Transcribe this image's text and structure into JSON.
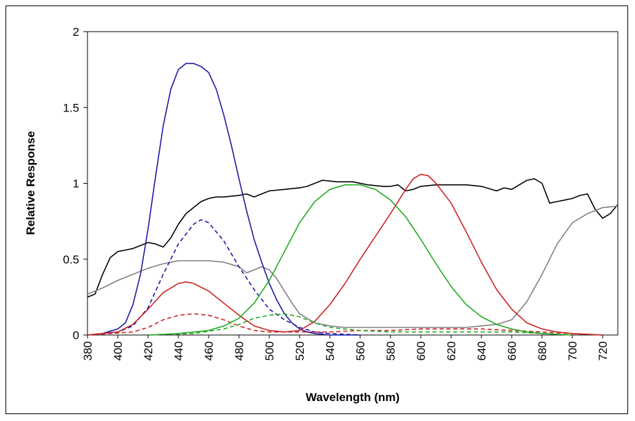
{
  "chart_data": {
    "type": "line",
    "title": "",
    "xlabel": "Wavelength (nm)",
    "ylabel": "Relative Response",
    "xlim": [
      380,
      730
    ],
    "ylim": [
      0,
      2
    ],
    "x_ticks": [
      380,
      400,
      420,
      440,
      460,
      480,
      500,
      520,
      540,
      560,
      580,
      600,
      620,
      640,
      660,
      680,
      700,
      720
    ],
    "y_ticks": [
      0,
      0.5,
      1,
      1.5,
      2
    ],
    "y_tick_labels": [
      "0",
      "0.5",
      "1",
      "1.5",
      "2"
    ],
    "grid": false,
    "legend": "none",
    "series": [
      {
        "color": "#000000",
        "dash": false,
        "points": [
          [
            380,
            0.25
          ],
          [
            385,
            0.27
          ],
          [
            390,
            0.4
          ],
          [
            395,
            0.51
          ],
          [
            400,
            0.55
          ],
          [
            405,
            0.56
          ],
          [
            410,
            0.57
          ],
          [
            415,
            0.59
          ],
          [
            420,
            0.61
          ],
          [
            425,
            0.6
          ],
          [
            430,
            0.58
          ],
          [
            435,
            0.64
          ],
          [
            440,
            0.73
          ],
          [
            445,
            0.8
          ],
          [
            450,
            0.84
          ],
          [
            455,
            0.88
          ],
          [
            460,
            0.9
          ],
          [
            465,
            0.91
          ],
          [
            470,
            0.91
          ],
          [
            480,
            0.92
          ],
          [
            485,
            0.93
          ],
          [
            490,
            0.91
          ],
          [
            495,
            0.93
          ],
          [
            500,
            0.95
          ],
          [
            510,
            0.96
          ],
          [
            520,
            0.97
          ],
          [
            525,
            0.98
          ],
          [
            530,
            1.0
          ],
          [
            535,
            1.02
          ],
          [
            545,
            1.01
          ],
          [
            555,
            1.01
          ],
          [
            565,
            0.99
          ],
          [
            575,
            0.98
          ],
          [
            580,
            0.98
          ],
          [
            585,
            0.99
          ],
          [
            590,
            0.95
          ],
          [
            595,
            0.96
          ],
          [
            600,
            0.98
          ],
          [
            610,
            0.99
          ],
          [
            620,
            0.99
          ],
          [
            630,
            0.99
          ],
          [
            640,
            0.98
          ],
          [
            650,
            0.95
          ],
          [
            655,
            0.97
          ],
          [
            660,
            0.96
          ],
          [
            665,
            0.99
          ],
          [
            670,
            1.02
          ],
          [
            675,
            1.03
          ],
          [
            680,
            1.0
          ],
          [
            685,
            0.87
          ],
          [
            690,
            0.88
          ],
          [
            695,
            0.89
          ],
          [
            700,
            0.9
          ],
          [
            705,
            0.92
          ],
          [
            710,
            0.93
          ],
          [
            715,
            0.83
          ],
          [
            720,
            0.77
          ],
          [
            725,
            0.8
          ],
          [
            730,
            0.86
          ]
        ]
      },
      {
        "color": "#808080",
        "dash": false,
        "points": [
          [
            380,
            0.27
          ],
          [
            390,
            0.31
          ],
          [
            400,
            0.36
          ],
          [
            410,
            0.4
          ],
          [
            420,
            0.44
          ],
          [
            430,
            0.47
          ],
          [
            440,
            0.49
          ],
          [
            450,
            0.49
          ],
          [
            460,
            0.49
          ],
          [
            470,
            0.48
          ],
          [
            480,
            0.45
          ],
          [
            485,
            0.41
          ],
          [
            490,
            0.43
          ],
          [
            495,
            0.45
          ],
          [
            500,
            0.43
          ],
          [
            505,
            0.37
          ],
          [
            510,
            0.29
          ],
          [
            515,
            0.21
          ],
          [
            520,
            0.14
          ],
          [
            530,
            0.08
          ],
          [
            540,
            0.06
          ],
          [
            550,
            0.05
          ],
          [
            560,
            0.05
          ],
          [
            580,
            0.05
          ],
          [
            600,
            0.05
          ],
          [
            620,
            0.05
          ],
          [
            630,
            0.05
          ],
          [
            640,
            0.06
          ],
          [
            650,
            0.07
          ],
          [
            660,
            0.1
          ],
          [
            670,
            0.22
          ],
          [
            680,
            0.4
          ],
          [
            690,
            0.6
          ],
          [
            700,
            0.74
          ],
          [
            710,
            0.8
          ],
          [
            720,
            0.84
          ],
          [
            730,
            0.85
          ]
        ]
      },
      {
        "color": "#1a1aa6",
        "dash": false,
        "points": [
          [
            380,
            0.0
          ],
          [
            390,
            0.01
          ],
          [
            400,
            0.04
          ],
          [
            405,
            0.08
          ],
          [
            410,
            0.2
          ],
          [
            415,
            0.4
          ],
          [
            420,
            0.7
          ],
          [
            425,
            1.05
          ],
          [
            430,
            1.38
          ],
          [
            435,
            1.62
          ],
          [
            440,
            1.75
          ],
          [
            445,
            1.79
          ],
          [
            450,
            1.79
          ],
          [
            455,
            1.77
          ],
          [
            460,
            1.73
          ],
          [
            465,
            1.62
          ],
          [
            470,
            1.45
          ],
          [
            475,
            1.25
          ],
          [
            480,
            1.03
          ],
          [
            485,
            0.82
          ],
          [
            490,
            0.63
          ],
          [
            495,
            0.48
          ],
          [
            500,
            0.34
          ],
          [
            505,
            0.23
          ],
          [
            510,
            0.14
          ],
          [
            515,
            0.08
          ],
          [
            520,
            0.04
          ],
          [
            525,
            0.02
          ],
          [
            530,
            0.01
          ],
          [
            540,
            0.0
          ],
          [
            560,
            0.0
          ]
        ]
      },
      {
        "color": "#1a1aa6",
        "dash": true,
        "points": [
          [
            380,
            0.0
          ],
          [
            400,
            0.02
          ],
          [
            410,
            0.06
          ],
          [
            420,
            0.18
          ],
          [
            430,
            0.4
          ],
          [
            440,
            0.6
          ],
          [
            450,
            0.73
          ],
          [
            455,
            0.76
          ],
          [
            460,
            0.74
          ],
          [
            470,
            0.62
          ],
          [
            480,
            0.45
          ],
          [
            490,
            0.3
          ],
          [
            500,
            0.17
          ],
          [
            510,
            0.1
          ],
          [
            520,
            0.05
          ],
          [
            530,
            0.02
          ],
          [
            540,
            0.01
          ],
          [
            560,
            0.0
          ]
        ]
      },
      {
        "color": "#cc2222",
        "dash": false,
        "points": [
          [
            380,
            0.0
          ],
          [
            400,
            0.02
          ],
          [
            410,
            0.07
          ],
          [
            420,
            0.17
          ],
          [
            430,
            0.28
          ],
          [
            440,
            0.34
          ],
          [
            445,
            0.35
          ],
          [
            450,
            0.34
          ],
          [
            460,
            0.29
          ],
          [
            470,
            0.21
          ],
          [
            480,
            0.13
          ],
          [
            490,
            0.06
          ],
          [
            500,
            0.03
          ],
          [
            510,
            0.02
          ],
          [
            520,
            0.03
          ],
          [
            530,
            0.09
          ],
          [
            540,
            0.2
          ],
          [
            550,
            0.34
          ],
          [
            560,
            0.5
          ],
          [
            570,
            0.65
          ],
          [
            580,
            0.8
          ],
          [
            590,
            0.96
          ],
          [
            595,
            1.03
          ],
          [
            600,
            1.06
          ],
          [
            605,
            1.05
          ],
          [
            610,
            1.0
          ],
          [
            620,
            0.87
          ],
          [
            630,
            0.68
          ],
          [
            640,
            0.48
          ],
          [
            650,
            0.3
          ],
          [
            660,
            0.17
          ],
          [
            670,
            0.08
          ],
          [
            680,
            0.04
          ],
          [
            690,
            0.02
          ],
          [
            700,
            0.01
          ],
          [
            720,
            0.0
          ]
        ]
      },
      {
        "color": "#cc2222",
        "dash": true,
        "points": [
          [
            380,
            0.0
          ],
          [
            410,
            0.02
          ],
          [
            420,
            0.05
          ],
          [
            430,
            0.1
          ],
          [
            440,
            0.13
          ],
          [
            450,
            0.14
          ],
          [
            460,
            0.13
          ],
          [
            470,
            0.1
          ],
          [
            480,
            0.06
          ],
          [
            490,
            0.03
          ],
          [
            500,
            0.02
          ],
          [
            520,
            0.02
          ],
          [
            540,
            0.02
          ],
          [
            560,
            0.03
          ],
          [
            580,
            0.03
          ],
          [
            600,
            0.04
          ],
          [
            620,
            0.04
          ],
          [
            640,
            0.04
          ],
          [
            660,
            0.03
          ],
          [
            680,
            0.02
          ],
          [
            700,
            0.01
          ],
          [
            720,
            0.0
          ]
        ]
      },
      {
        "color": "#22aa22",
        "dash": false,
        "points": [
          [
            420,
            0.0
          ],
          [
            440,
            0.01
          ],
          [
            460,
            0.03
          ],
          [
            470,
            0.06
          ],
          [
            480,
            0.11
          ],
          [
            490,
            0.21
          ],
          [
            500,
            0.36
          ],
          [
            510,
            0.55
          ],
          [
            520,
            0.74
          ],
          [
            530,
            0.88
          ],
          [
            540,
            0.96
          ],
          [
            550,
            0.99
          ],
          [
            560,
            0.99
          ],
          [
            570,
            0.96
          ],
          [
            580,
            0.89
          ],
          [
            590,
            0.78
          ],
          [
            600,
            0.63
          ],
          [
            610,
            0.47
          ],
          [
            620,
            0.32
          ],
          [
            630,
            0.2
          ],
          [
            640,
            0.12
          ],
          [
            650,
            0.07
          ],
          [
            660,
            0.04
          ],
          [
            670,
            0.02
          ],
          [
            680,
            0.01
          ],
          [
            700,
            0.0
          ]
        ]
      },
      {
        "color": "#22aa22",
        "dash": true,
        "points": [
          [
            420,
            0.0
          ],
          [
            450,
            0.01
          ],
          [
            470,
            0.04
          ],
          [
            480,
            0.07
          ],
          [
            490,
            0.11
          ],
          [
            500,
            0.13
          ],
          [
            510,
            0.14
          ],
          [
            520,
            0.12
          ],
          [
            530,
            0.08
          ],
          [
            540,
            0.05
          ],
          [
            560,
            0.03
          ],
          [
            580,
            0.02
          ],
          [
            600,
            0.02
          ],
          [
            620,
            0.02
          ],
          [
            640,
            0.02
          ],
          [
            660,
            0.02
          ],
          [
            680,
            0.01
          ],
          [
            700,
            0.0
          ]
        ]
      }
    ]
  }
}
